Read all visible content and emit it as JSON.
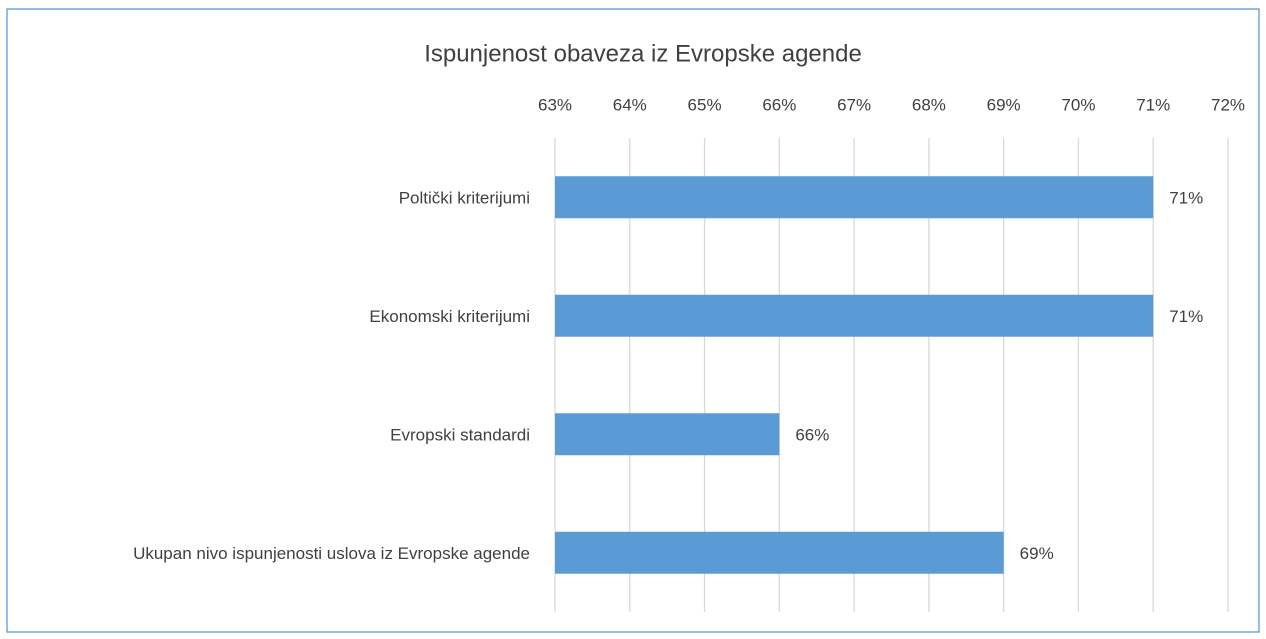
{
  "chart_data": {
    "type": "hbar",
    "title": "Ispunjenost obaveza iz Evropske agende",
    "categories": [
      "Poltički kriterijumi",
      "Ekonomski kriterijumi",
      "Evropski standardi",
      "Ukupan nivo ispunjenosti uslova iz Evropske agende"
    ],
    "values": [
      71,
      71,
      66,
      69
    ],
    "value_labels": [
      "71%",
      "71%",
      "66%",
      "69%"
    ],
    "color": "#5b9bd5",
    "xlim": [
      63,
      72
    ],
    "xticks": [
      {
        "value": 63,
        "label": "63%"
      },
      {
        "value": 64,
        "label": "64%"
      },
      {
        "value": 65,
        "label": "65%"
      },
      {
        "value": 66,
        "label": "66%"
      },
      {
        "value": 67,
        "label": "67%"
      },
      {
        "value": 68,
        "label": "68%"
      },
      {
        "value": 69,
        "label": "69%"
      },
      {
        "value": 70,
        "label": "70%"
      },
      {
        "value": 71,
        "label": "71%"
      },
      {
        "value": 72,
        "label": "72%"
      }
    ],
    "grid": true
  }
}
